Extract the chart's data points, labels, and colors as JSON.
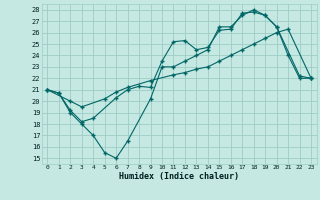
{
  "xlabel": "Humidex (Indice chaleur)",
  "bg_color": "#c5e8e2",
  "grid_color": "#9dcdc5",
  "line_color": "#006666",
  "xlim": [
    -0.5,
    23.5
  ],
  "ylim": [
    14.5,
    28.5
  ],
  "xticks": [
    0,
    1,
    2,
    3,
    4,
    5,
    6,
    7,
    8,
    9,
    10,
    11,
    12,
    13,
    14,
    15,
    16,
    17,
    18,
    19,
    20,
    21,
    22,
    23
  ],
  "yticks": [
    15,
    16,
    17,
    18,
    19,
    20,
    21,
    22,
    23,
    24,
    25,
    26,
    27,
    28
  ],
  "line1_x": [
    0,
    1,
    2,
    3,
    4,
    5,
    6,
    7,
    9,
    10,
    11,
    12,
    13,
    14,
    15,
    16,
    17,
    18,
    19,
    20,
    21,
    22,
    23
  ],
  "line1_y": [
    21,
    20.7,
    19,
    18,
    17,
    15.5,
    15,
    16.5,
    20.2,
    23,
    23,
    23.5,
    24,
    24.5,
    26.5,
    26.5,
    27.5,
    28,
    27.5,
    26.5,
    24,
    22,
    22
  ],
  "line2_x": [
    0,
    1,
    2,
    3,
    4,
    6,
    7,
    8,
    9,
    10,
    11,
    12,
    13,
    14,
    15,
    16,
    17,
    18,
    19,
    20,
    22,
    23
  ],
  "line2_y": [
    21,
    20.7,
    19.2,
    18.2,
    18.5,
    20.3,
    21.0,
    21.3,
    21.2,
    23.5,
    25.2,
    25.3,
    24.5,
    24.7,
    26.2,
    26.3,
    27.7,
    27.8,
    27.5,
    26.5,
    22.2,
    22
  ],
  "line3_x": [
    0,
    2,
    3,
    5,
    6,
    7,
    9,
    11,
    12,
    13,
    14,
    15,
    16,
    17,
    18,
    19,
    20,
    21,
    23
  ],
  "line3_y": [
    21,
    20.0,
    19.5,
    20.2,
    20.8,
    21.2,
    21.8,
    22.3,
    22.5,
    22.8,
    23.0,
    23.5,
    24.0,
    24.5,
    25.0,
    25.5,
    26.0,
    26.3,
    22
  ]
}
